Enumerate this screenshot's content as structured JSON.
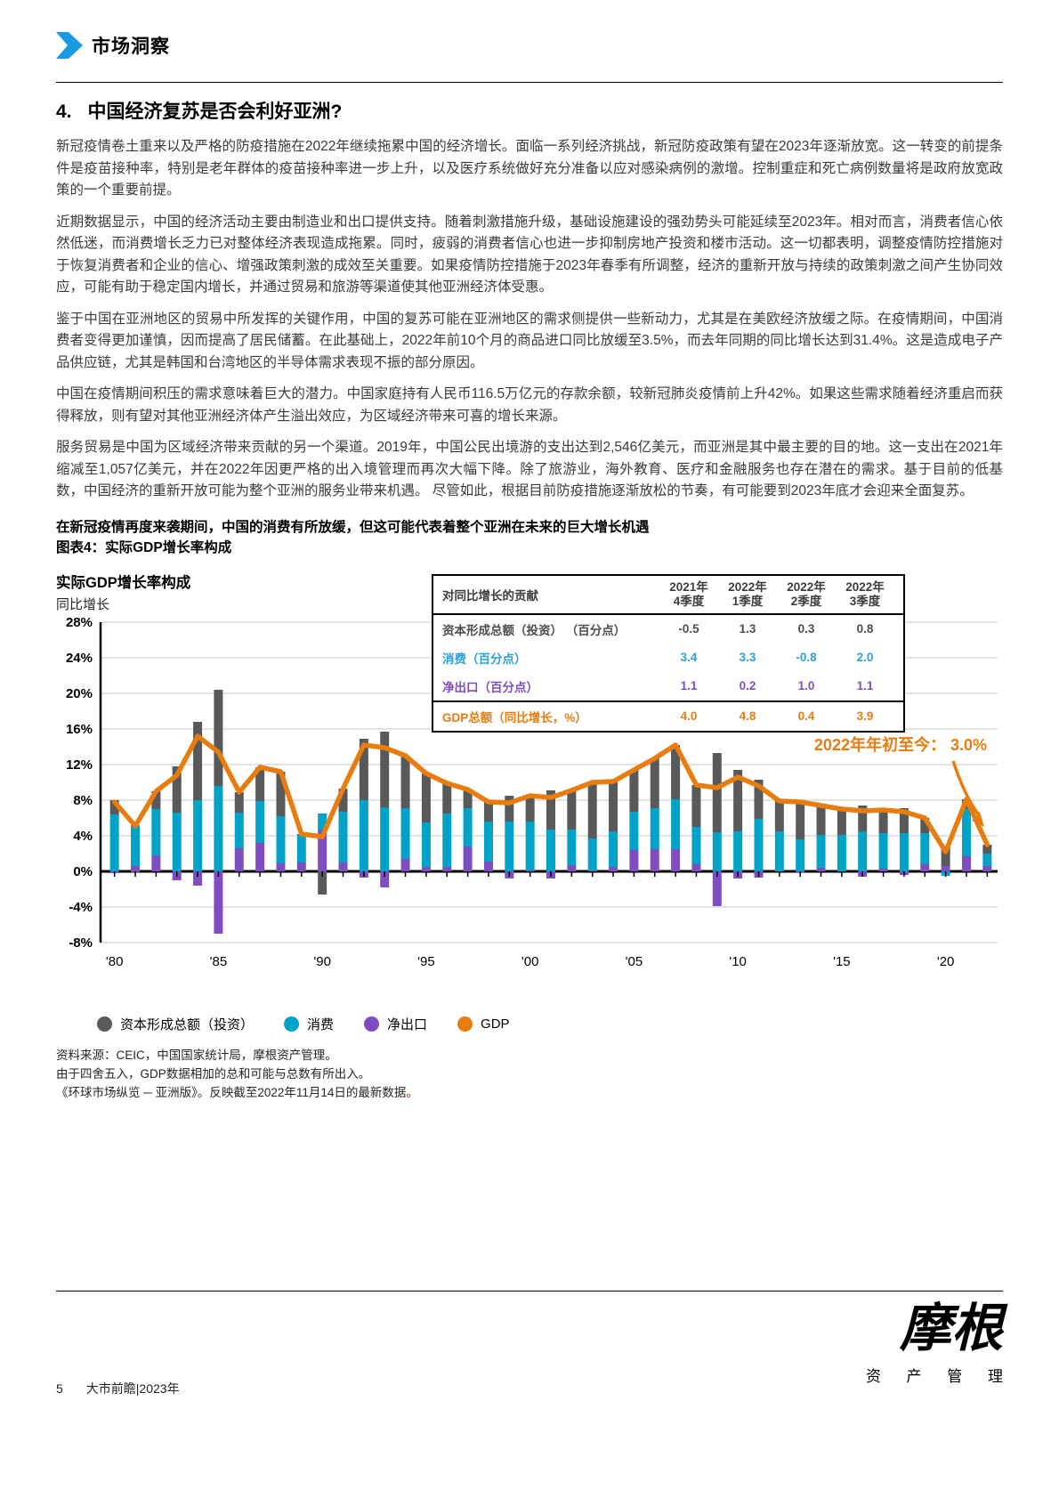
{
  "brand": "市场洞察",
  "colors": {
    "accent_blue": "#1B9AE4",
    "bar_gray": "#58595B",
    "bar_teal": "#00A3C7",
    "bar_purple": "#7E4DC2",
    "line_orange": "#E87C0F",
    "table_blue": "#2AA0D8",
    "source_red": "#C00000"
  },
  "title": {
    "num": "4.",
    "text": "中国经济复苏是否会利好亚洲?"
  },
  "paragraphs": [
    "新冠疫情卷土重来以及严格的防疫措施在2022年继续拖累中国的经济增长。面临一系列经济挑战，新冠防疫政策有望在2023年逐渐放宽。这一转变的前提条件是疫苗接种率，特别是老年群体的疫苗接种率进一步上升，以及医疗系统做好充分准备以应对感染病例的激增。控制重症和死亡病例数量将是政府放宽政策的一个重要前提。",
    "近期数据显示，中国的经济活动主要由制造业和出口提供支持。随着刺激措施升级，基础设施建设的强劲势头可能延续至2023年。相对而言，消费者信心依然低迷，而消费增长乏力已对整体经济表现造成拖累。同时，疲弱的消费者信心也进一步抑制房地产投资和楼市活动。这一切都表明，调整疫情防控措施对于恢复消费者和企业的信心、增强政策刺激的成效至关重要。如果疫情防控措施于2023年春季有所调整，经济的重新开放与持续的政策刺激之间产生协同效应，可能有助于稳定国内增长，并通过贸易和旅游等渠道使其他亚洲经济体受惠。",
    "鉴于中国在亚洲地区的贸易中所发挥的关键作用，中国的复苏可能在亚洲地区的需求侧提供一些新动力，尤其是在美欧经济放缓之际。在疫情期间，中国消费者变得更加谨慎，因而提高了居民储蓄。在此基础上，2022年前10个月的商品进口同比放缓至3.5%，而去年同期的同比增长达到31.4%。这是造成电子产品供应链，尤其是韩国和台湾地区的半导体需求表现不振的部分原因。",
    "中国在疫情期间积压的需求意味着巨大的潜力。中国家庭持有人民币116.5万亿元的存款余额，较新冠肺炎疫情前上升42%。如果这些需求随着经济重启而获得释放，则有望对其他亚洲经济体产生溢出效应，为区域经济带来可喜的增长来源。",
    "服务贸易是中国为区域经济带来贡献的另一个渠道。2019年，中国公民出境游的支出达到2,546亿美元，而亚洲是其中最主要的目的地。这一支出在2021年缩减至1,057亿美元，并在2022年因更严格的出入境管理而再次大幅下降。除了旅游业，海外教育、医疗和金融服务也存在潜在的需求。基于目前的低基数，中国经济的重新开放可能为整个亚洲的服务业带来机遇。 尽管如此，根据目前防疫措施逐渐放松的节奏，有可能要到2023年底才会迎来全面复苏。"
  ],
  "figure_caption_line1": "在新冠疫情再度来袭期间，中国的消费有所放缓，但这可能代表着整个亚洲在未来的巨大增长机遇",
  "figure_caption_line2": "图表4：实际GDP增长率构成",
  "table": {
    "header": {
      "label": "对同比增长的贡献",
      "cols": [
        "2021年\n4季度",
        "2022年\n1季度",
        "2022年\n2季度",
        "2022年\n3季度"
      ]
    },
    "rows": [
      {
        "label": "资本形成总额（投资） （百分点）",
        "values": [
          "-0.5",
          "1.3",
          "0.3",
          "0.8"
        ],
        "color": "#4d4d4d"
      },
      {
        "label": "消费（百分点）",
        "values": [
          "3.4",
          "3.3",
          "-0.8",
          "2.0"
        ],
        "color": "#2AA0D8"
      },
      {
        "label": "净出口（百分点）",
        "values": [
          "1.1",
          "0.2",
          "1.0",
          "1.1"
        ],
        "color": "#7E4DC2"
      },
      {
        "label": "GDP总额（同比增长，%）",
        "values": [
          "4.0",
          "4.8",
          "0.4",
          "3.9"
        ],
        "color": "#E87C0F"
      }
    ]
  },
  "chart_data": {
    "type": "stacked-bar-with-line",
    "title": "实际GDP增长率构成",
    "ylabel": "同比增长",
    "ylim": [
      -8,
      28
    ],
    "ytick_step": 4,
    "ytick_suffix": "%",
    "grid": true,
    "legend_position": "bottom",
    "x": [
      1980,
      1981,
      1982,
      1983,
      1984,
      1985,
      1986,
      1987,
      1988,
      1989,
      1990,
      1991,
      1992,
      1993,
      1994,
      1995,
      1996,
      1997,
      1998,
      1999,
      2000,
      2001,
      2002,
      2003,
      2004,
      2005,
      2006,
      2007,
      2008,
      2009,
      2010,
      2011,
      2012,
      2013,
      2014,
      2015,
      2016,
      2017,
      2018,
      2019,
      2020,
      2021,
      2022
    ],
    "x_tick_labels": [
      "'80",
      "'85",
      "'90",
      "'95",
      "'00",
      "'05",
      "'10",
      "'15",
      "'20"
    ],
    "series": [
      {
        "id": "net",
        "name": "净出口",
        "color": "#7E4DC2",
        "values": [
          -0.2,
          0.6,
          1.8,
          -1.0,
          -1.6,
          -7.0,
          2.6,
          3.2,
          0.9,
          1.0,
          4.6,
          1.0,
          -0.7,
          -1.8,
          1.4,
          0.5,
          0.5,
          2.8,
          1.1,
          -0.8,
          0.1,
          -0.8,
          0.7,
          0.1,
          0.5,
          2.4,
          2.5,
          2.5,
          0.8,
          -3.9,
          -0.8,
          -0.7,
          0.0,
          -0.1,
          0.4,
          0.0,
          -0.6,
          0.3,
          -0.4,
          0.8,
          0.6,
          1.7,
          0.6
        ]
      },
      {
        "id": "cons",
        "name": "消费",
        "color": "#00A3C7",
        "values": [
          6.4,
          4.6,
          5.2,
          6.6,
          8.0,
          9.6,
          4.0,
          4.7,
          5.3,
          3.2,
          1.9,
          5.7,
          8.0,
          7.2,
          5.7,
          5.0,
          6.0,
          4.3,
          4.5,
          5.6,
          5.5,
          4.7,
          4.0,
          3.6,
          4.0,
          4.3,
          4.6,
          5.6,
          4.2,
          4.4,
          4.5,
          5.9,
          4.5,
          3.6,
          3.7,
          4.1,
          4.5,
          4.0,
          4.3,
          3.5,
          -0.5,
          5.3,
          1.4
        ]
      },
      {
        "id": "inv",
        "name": "资本形成总额（投资）",
        "color": "#58595B",
        "values": [
          1.6,
          -0.1,
          2.0,
          5.2,
          8.8,
          10.8,
          2.3,
          3.8,
          5.0,
          0.0,
          -2.6,
          2.6,
          6.9,
          8.5,
          5.9,
          5.5,
          3.4,
          2.1,
          2.2,
          2.9,
          2.9,
          4.4,
          4.4,
          6.3,
          5.6,
          4.7,
          5.6,
          6.1,
          4.7,
          8.9,
          6.9,
          4.4,
          3.4,
          4.3,
          3.3,
          2.9,
          2.9,
          2.6,
          2.8,
          1.7,
          2.2,
          1.1,
          1.0
        ]
      }
    ],
    "line": {
      "name": "GDP",
      "color": "#E87C0F",
      "values": [
        7.8,
        5.1,
        9.0,
        10.8,
        15.2,
        13.4,
        8.9,
        11.7,
        11.2,
        4.2,
        3.9,
        9.3,
        14.2,
        13.9,
        13.0,
        11.0,
        9.9,
        9.2,
        7.8,
        7.7,
        8.5,
        8.3,
        9.1,
        10.0,
        10.1,
        11.4,
        12.7,
        14.2,
        9.7,
        9.4,
        10.6,
        9.6,
        7.9,
        7.8,
        7.4,
        7.0,
        6.8,
        6.9,
        6.7,
        6.0,
        2.2,
        8.1,
        3.0
      ]
    },
    "legend": [
      {
        "label": "资本形成总额（投资）",
        "color": "#58595B",
        "icon": "gray-dot-icon"
      },
      {
        "label": "消费",
        "color": "#00A3C7",
        "icon": "teal-dot-icon"
      },
      {
        "label": "净出口",
        "color": "#7E4DC2",
        "icon": "purple-dot-icon"
      },
      {
        "label": "GDP",
        "color": "#E87C0F",
        "icon": "orange-dot-icon"
      }
    ],
    "annotation": {
      "text": "2022年年初至今：  3.0%",
      "color": "#E87C0F"
    }
  },
  "sources": {
    "line1": "资料来源：CEIC，中国国家统计局，摩根资产管理。",
    "line2": "由于四舍五入，GDP数据相加的总和可能与总数有所出入。",
    "line3": "《环球市场纵览 ─ 亚洲版》。反映截至2022年11月14日的最新数据",
    "line3_end": "。"
  },
  "footer": {
    "page_number": "5",
    "doc_title": "大市前瞻|2023年",
    "logo_main": "摩根",
    "logo_sub": "资 产 管 理"
  }
}
